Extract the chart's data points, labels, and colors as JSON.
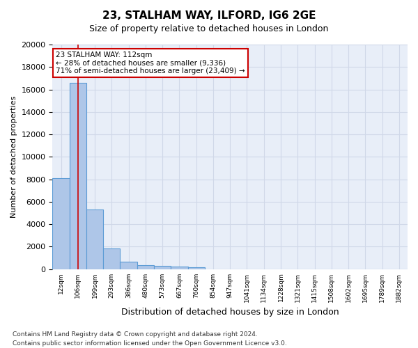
{
  "title1": "23, STALHAM WAY, ILFORD, IG6 2GE",
  "title2": "Size of property relative to detached houses in London",
  "xlabel": "Distribution of detached houses by size in London",
  "ylabel": "Number of detached properties",
  "categories": [
    "12sqm",
    "106sqm",
    "199sqm",
    "293sqm",
    "386sqm",
    "480sqm",
    "573sqm",
    "667sqm",
    "760sqm",
    "854sqm",
    "947sqm",
    "1041sqm",
    "1134sqm",
    "1228sqm",
    "1321sqm",
    "1415sqm",
    "1508sqm",
    "1602sqm",
    "1695sqm",
    "1789sqm",
    "1882sqm"
  ],
  "values": [
    8100,
    16600,
    5300,
    1850,
    680,
    350,
    270,
    220,
    185,
    0,
    0,
    0,
    0,
    0,
    0,
    0,
    0,
    0,
    0,
    0,
    0
  ],
  "bar_color": "#aec6e8",
  "bar_edge_color": "#5b9bd5",
  "annotation_line_bin": 1,
  "annotation_text_line1": "23 STALHAM WAY: 112sqm",
  "annotation_text_line2": "← 28% of detached houses are smaller (9,336)",
  "annotation_text_line3": "71% of semi-detached houses are larger (23,409) →",
  "ylim": [
    0,
    20000
  ],
  "yticks": [
    0,
    2000,
    4000,
    6000,
    8000,
    10000,
    12000,
    14000,
    16000,
    18000,
    20000
  ],
  "footnote1": "Contains HM Land Registry data © Crown copyright and database right 2024.",
  "footnote2": "Contains public sector information licensed under the Open Government Licence v3.0.",
  "bg_color": "#ffffff",
  "ax_bg_color": "#e8eef8",
  "grid_color": "#d0d8e8",
  "red_line_color": "#cc0000",
  "annotation_box_edge": "#cc0000"
}
